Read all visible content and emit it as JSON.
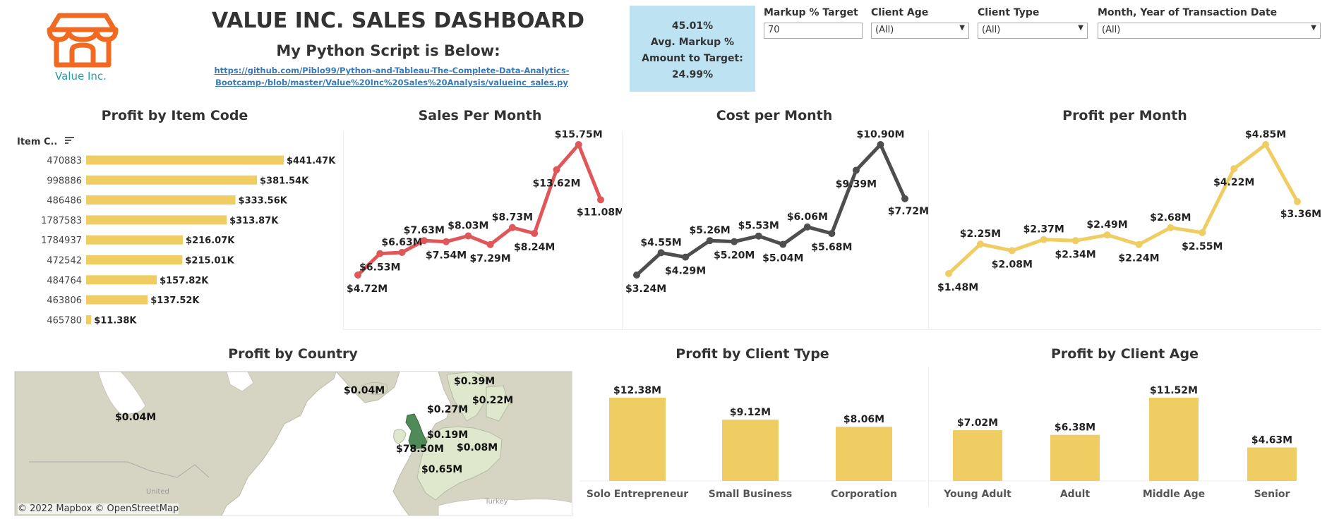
{
  "header": {
    "logo_text": "Value Inc.",
    "title": "VALUE INC. SALES DASHBOARD",
    "subtitle": "My Python Script is Below:",
    "link_line1": "https://github.com/Piblo99/Python-and-Tableau-The-Complete-Data-Analytics-",
    "link_line2": "Bootcamp-/blob/master/Value%20Inc%20Sales%20Analysis/valueinc_sales.py"
  },
  "kpi": {
    "line1": "45.01%",
    "line2": "Avg. Markup %",
    "line3": "Amount to Target:",
    "line4": "24.99%"
  },
  "filters": {
    "markup_label": "Markup % Target",
    "markup_value": "70",
    "age_label": "Client Age",
    "age_value": "(All)",
    "type_label": "Client Type",
    "type_value": "(All)",
    "month_label": "Month, Year of Transaction Date",
    "month_value": "(All)"
  },
  "colors": {
    "yellow": "#f0cd62",
    "red": "#e05759",
    "dark": "#4e4e4e",
    "kpi_bg": "#bde3f3",
    "land": "#d6d5c4",
    "water": "#ffffff",
    "uk": "#4f8a58",
    "europe": "#dfe7cd"
  },
  "map": {
    "title": "Profit by Country",
    "copyright": "© 2022 Mapbox  © OpenStreetMap",
    "labels": [
      {
        "text": "$0.04M",
        "name": "canada-profit"
      },
      {
        "text": "$0.04M",
        "name": "iceland-profit"
      },
      {
        "text": "$0.39M",
        "name": "norway-profit"
      },
      {
        "text": "$0.22M",
        "name": "finland-profit"
      },
      {
        "text": "$0.27M",
        "name": "denmark-profit"
      },
      {
        "text": "$0.19M",
        "name": "germany-profit"
      },
      {
        "text": "$78.50M",
        "name": "uk-profit"
      },
      {
        "text": "$0.08M",
        "name": "poland-profit"
      },
      {
        "text": "$0.65M",
        "name": "france-profit"
      }
    ],
    "place_labels": [
      "United",
      "Turkey"
    ]
  },
  "chart_data": [
    {
      "id": "item",
      "type": "bar",
      "orientation": "horizontal",
      "title": "Profit by Item Code",
      "header": "Item C..",
      "categories": [
        "470883",
        "998886",
        "486486",
        "1787583",
        "1784937",
        "472542",
        "484764",
        "463806",
        "465780"
      ],
      "values": [
        441.47,
        381.54,
        333.56,
        313.87,
        216.07,
        215.01,
        157.82,
        137.52,
        11.38
      ],
      "labels": [
        "$441.47K",
        "$381.54K",
        "$333.56K",
        "$313.87K",
        "$216.07K",
        "$215.01K",
        "$157.82K",
        "$137.52K",
        "$11.38K"
      ],
      "unit": "K"
    },
    {
      "id": "sales",
      "type": "line",
      "title": "Sales Per Month",
      "values": [
        4.72,
        6.53,
        6.63,
        7.63,
        7.54,
        8.03,
        7.29,
        8.73,
        8.24,
        13.62,
        15.75,
        11.08
      ],
      "labels": [
        "$4.72M",
        "$6.53M",
        "$6.63M",
        "$7.63M",
        "$7.54M",
        "$8.03M",
        "$7.29M",
        "$8.73M",
        "$8.24M",
        "$13.62M",
        "$15.75M",
        "$11.08M"
      ],
      "unit": "M"
    },
    {
      "id": "cost",
      "type": "line",
      "title": "Cost per Month",
      "values": [
        3.24,
        4.55,
        4.29,
        5.26,
        5.2,
        5.53,
        5.04,
        6.06,
        5.68,
        9.39,
        10.9,
        7.72
      ],
      "labels": [
        "$3.24M",
        "$4.55M",
        "$4.29M",
        "$5.26M",
        "$5.20M",
        "$5.53M",
        "$5.04M",
        "$6.06M",
        "$5.68M",
        "$9.39M",
        "$10.90M",
        "$7.72M"
      ],
      "unit": "M"
    },
    {
      "id": "profit",
      "type": "line",
      "title": "Profit per Month",
      "values": [
        1.48,
        2.25,
        2.08,
        2.37,
        2.34,
        2.49,
        2.24,
        2.68,
        2.55,
        4.22,
        4.85,
        3.36
      ],
      "labels": [
        "$1.48M",
        "$2.25M",
        "$2.08M",
        "$2.37M",
        "$2.34M",
        "$2.49M",
        "$2.24M",
        "$2.68M",
        "$2.55M",
        "$4.22M",
        "$4.85M",
        "$3.36M"
      ],
      "unit": "M"
    },
    {
      "id": "ctype",
      "type": "bar",
      "title": "Profit by Client Type",
      "categories": [
        "Solo Entrepreneur",
        "Small Business",
        "Corporation"
      ],
      "values": [
        12.38,
        9.12,
        8.06
      ],
      "labels": [
        "$12.38M",
        "$9.12M",
        "$8.06M"
      ],
      "unit": "M"
    },
    {
      "id": "cage",
      "type": "bar",
      "title": "Profit by Client Age",
      "categories": [
        "Young Adult",
        "Adult",
        "Middle Age",
        "Senior"
      ],
      "values": [
        7.02,
        6.38,
        11.52,
        4.63
      ],
      "labels": [
        "$7.02M",
        "$6.38M",
        "$11.52M",
        "$4.63M"
      ],
      "unit": "M"
    }
  ]
}
